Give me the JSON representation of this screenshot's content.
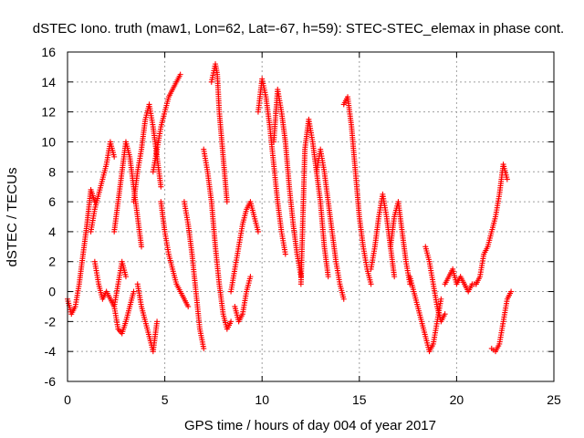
{
  "chart_data": {
    "type": "scatter",
    "title": "dSTEC Iono. truth (maw1, Lon=62, Lat=-67, h=59): STEC-STEC_elemax in phase cont.",
    "xlabel": "GPS time / hours of day 004 of year 2017",
    "ylabel": "dSTEC  / TECUs",
    "xlim": [
      0,
      25
    ],
    "ylim": [
      -6,
      16
    ],
    "xticks": [
      0,
      5,
      10,
      15,
      20,
      25
    ],
    "yticks": [
      -6,
      -4,
      -2,
      0,
      2,
      4,
      6,
      8,
      10,
      12,
      14,
      16
    ],
    "grid": true,
    "marker": "+",
    "color": "#ff0000",
    "series": [
      {
        "x": [
          0.0,
          0.2,
          0.4,
          0.6,
          0.8,
          1.0,
          1.2,
          1.4
        ],
        "y": [
          -0.5,
          -1.5,
          -1.0,
          0.5,
          2.5,
          4.5,
          6.8,
          6.0
        ]
      },
      {
        "x": [
          1.2,
          1.4,
          1.6,
          1.8,
          2.0,
          2.2,
          2.4
        ],
        "y": [
          4.0,
          5.5,
          6.5,
          7.5,
          8.5,
          10.0,
          9.0
        ]
      },
      {
        "x": [
          1.4,
          1.6,
          1.8,
          2.0,
          2.2,
          2.4,
          2.6,
          2.8,
          3.0
        ],
        "y": [
          2.0,
          0.5,
          -0.5,
          0.0,
          -0.5,
          -1.0,
          0.5,
          2.0,
          1.0
        ]
      },
      {
        "x": [
          2.4,
          2.6,
          2.8,
          3.0,
          3.2,
          3.4,
          3.6,
          3.8
        ],
        "y": [
          4.0,
          6.0,
          8.0,
          10.0,
          9.0,
          7.0,
          5.0,
          3.0
        ]
      },
      {
        "x": [
          2.4,
          2.6,
          2.8,
          3.0,
          3.2,
          3.4
        ],
        "y": [
          -1.0,
          -2.5,
          -2.8,
          -2.0,
          -1.0,
          0.0
        ]
      },
      {
        "x": [
          3.4,
          3.6,
          3.8,
          4.0,
          4.2,
          4.4,
          4.6,
          4.8
        ],
        "y": [
          6.0,
          8.0,
          9.5,
          11.5,
          12.5,
          11.0,
          9.0,
          7.0
        ]
      },
      {
        "x": [
          3.6,
          3.8,
          4.0,
          4.2,
          4.4,
          4.6
        ],
        "y": [
          0.5,
          -1.0,
          -2.0,
          -3.0,
          -4.0,
          -2.0
        ]
      },
      {
        "x": [
          4.4,
          4.6,
          4.8,
          5.0,
          5.2,
          5.4,
          5.6,
          5.8
        ],
        "y": [
          8.0,
          9.5,
          11.0,
          12.0,
          13.0,
          13.5,
          14.0,
          14.5
        ]
      },
      {
        "x": [
          4.8,
          5.0,
          5.2,
          5.4,
          5.6,
          5.8,
          6.0,
          6.2
        ],
        "y": [
          6.0,
          4.0,
          2.5,
          1.5,
          0.5,
          0.0,
          -0.5,
          -1.0
        ]
      },
      {
        "x": [
          6.0,
          6.2,
          6.4,
          6.6,
          6.8,
          7.0
        ],
        "y": [
          6.0,
          4.5,
          2.5,
          0.0,
          -2.5,
          -3.8
        ]
      },
      {
        "x": [
          7.0,
          7.2,
          7.4,
          7.6,
          7.8,
          8.0,
          8.2,
          8.4
        ],
        "y": [
          9.5,
          8.0,
          6.0,
          3.0,
          0.5,
          -1.5,
          -2.5,
          -2.0
        ]
      },
      {
        "x": [
          7.4,
          7.6,
          7.7,
          7.8,
          8.0,
          8.2
        ],
        "y": [
          14.0,
          15.2,
          14.5,
          12.0,
          9.0,
          6.0
        ]
      },
      {
        "x": [
          8.4,
          8.6,
          8.8,
          9.0,
          9.2,
          9.4,
          9.6,
          9.8
        ],
        "y": [
          0.0,
          1.5,
          3.0,
          4.5,
          5.5,
          6.0,
          5.0,
          4.0
        ]
      },
      {
        "x": [
          8.6,
          8.8,
          9.0,
          9.2,
          9.4
        ],
        "y": [
          -1.0,
          -2.0,
          -1.5,
          0.0,
          1.0
        ]
      },
      {
        "x": [
          9.8,
          10.0,
          10.2,
          10.4,
          10.6,
          10.8,
          11.0,
          11.2
        ],
        "y": [
          12.0,
          14.2,
          13.0,
          11.0,
          8.5,
          6.0,
          4.0,
          2.5
        ]
      },
      {
        "x": [
          10.6,
          10.8,
          11.0,
          11.2,
          11.4,
          11.6,
          11.8,
          12.0
        ],
        "y": [
          10.0,
          13.5,
          12.0,
          10.0,
          7.0,
          4.5,
          2.5,
          1.0
        ]
      },
      {
        "x": [
          12.0,
          12.2,
          12.4,
          12.6,
          12.8,
          13.0,
          13.2,
          13.4
        ],
        "y": [
          0.5,
          9.5,
          11.5,
          10.0,
          8.0,
          6.0,
          3.0,
          1.0
        ]
      },
      {
        "x": [
          12.8,
          13.0,
          13.2,
          13.4,
          13.6,
          13.8,
          14.0,
          14.2
        ],
        "y": [
          8.0,
          9.5,
          8.0,
          6.0,
          4.0,
          2.0,
          0.5,
          -0.5
        ]
      },
      {
        "x": [
          14.2,
          14.4,
          14.6,
          14.8,
          15.0,
          15.2,
          15.4,
          15.6
        ],
        "y": [
          12.5,
          13.0,
          11.0,
          8.0,
          5.0,
          3.0,
          1.5,
          0.5
        ]
      },
      {
        "x": [
          15.6,
          15.8,
          16.0,
          16.2,
          16.4,
          16.6,
          16.8
        ],
        "y": [
          1.5,
          3.0,
          5.0,
          6.5,
          5.0,
          3.0,
          1.0
        ]
      },
      {
        "x": [
          16.6,
          16.8,
          17.0,
          17.2,
          17.4,
          17.6
        ],
        "y": [
          3.0,
          5.0,
          6.0,
          4.0,
          2.0,
          0.5
        ]
      },
      {
        "x": [
          17.6,
          17.8,
          18.0,
          18.2,
          18.4,
          18.6,
          18.8,
          19.0,
          19.2
        ],
        "y": [
          1.0,
          0.0,
          -1.0,
          -2.0,
          -3.0,
          -4.0,
          -3.5,
          -2.0,
          -0.5
        ]
      },
      {
        "x": [
          18.4,
          18.6,
          18.8,
          19.0,
          19.2,
          19.4
        ],
        "y": [
          3.0,
          2.0,
          0.5,
          -1.0,
          -2.0,
          -1.5
        ]
      },
      {
        "x": [
          19.4,
          19.6,
          19.8,
          20.0,
          20.2,
          20.4,
          20.6,
          20.8,
          21.0
        ],
        "y": [
          0.5,
          1.0,
          1.5,
          0.5,
          1.0,
          0.5,
          0.0,
          0.5,
          0.5
        ]
      },
      {
        "x": [
          21.0,
          21.2,
          21.4,
          21.6,
          21.8,
          22.0,
          22.2,
          22.4,
          22.6
        ],
        "y": [
          0.5,
          1.0,
          2.5,
          3.0,
          4.0,
          5.0,
          6.5,
          8.5,
          7.5
        ]
      },
      {
        "x": [
          21.8,
          22.0,
          22.2,
          22.4,
          22.6,
          22.8
        ],
        "y": [
          -3.8,
          -4.0,
          -3.5,
          -2.0,
          -0.5,
          0.0
        ]
      }
    ]
  }
}
